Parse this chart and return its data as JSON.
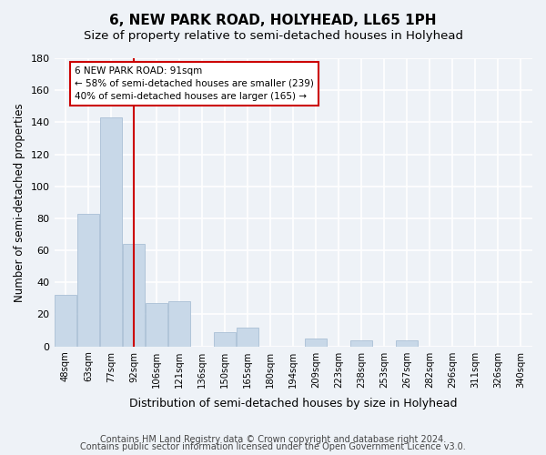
{
  "title": "6, NEW PARK ROAD, HOLYHEAD, LL65 1PH",
  "subtitle": "Size of property relative to semi-detached houses in Holyhead",
  "xlabel": "Distribution of semi-detached houses by size in Holyhead",
  "ylabel": "Number of semi-detached properties",
  "bins": [
    "48sqm",
    "63sqm",
    "77sqm",
    "92sqm",
    "106sqm",
    "121sqm",
    "136sqm",
    "150sqm",
    "165sqm",
    "180sqm",
    "194sqm",
    "209sqm",
    "223sqm",
    "238sqm",
    "253sqm",
    "267sqm",
    "282sqm",
    "296sqm",
    "311sqm",
    "326sqm",
    "340sqm"
  ],
  "bar_heights": [
    32,
    83,
    143,
    64,
    27,
    28,
    0,
    9,
    12,
    0,
    0,
    5,
    0,
    4,
    0,
    4,
    0,
    0,
    0,
    0,
    0
  ],
  "bar_color": "#c8d8e8",
  "bar_edge_color": "#a0b8d0",
  "vline_x_index": 3,
  "vline_color": "#cc0000",
  "annotation_text": "6 NEW PARK ROAD: 91sqm\n← 58% of semi-detached houses are smaller (239)\n40% of semi-detached houses are larger (165) →",
  "annotation_box_color": "#ffffff",
  "annotation_box_edgecolor": "#cc0000",
  "ylim": [
    0,
    180
  ],
  "yticks": [
    0,
    20,
    40,
    60,
    80,
    100,
    120,
    140,
    160,
    180
  ],
  "footer_line1": "Contains HM Land Registry data © Crown copyright and database right 2024.",
  "footer_line2": "Contains public sector information licensed under the Open Government Licence v3.0.",
  "background_color": "#eef2f7",
  "plot_background_color": "#eef2f7",
  "grid_color": "#ffffff",
  "title_fontsize": 11,
  "subtitle_fontsize": 9.5,
  "xlabel_fontsize": 9,
  "ylabel_fontsize": 8.5,
  "footer_fontsize": 7
}
